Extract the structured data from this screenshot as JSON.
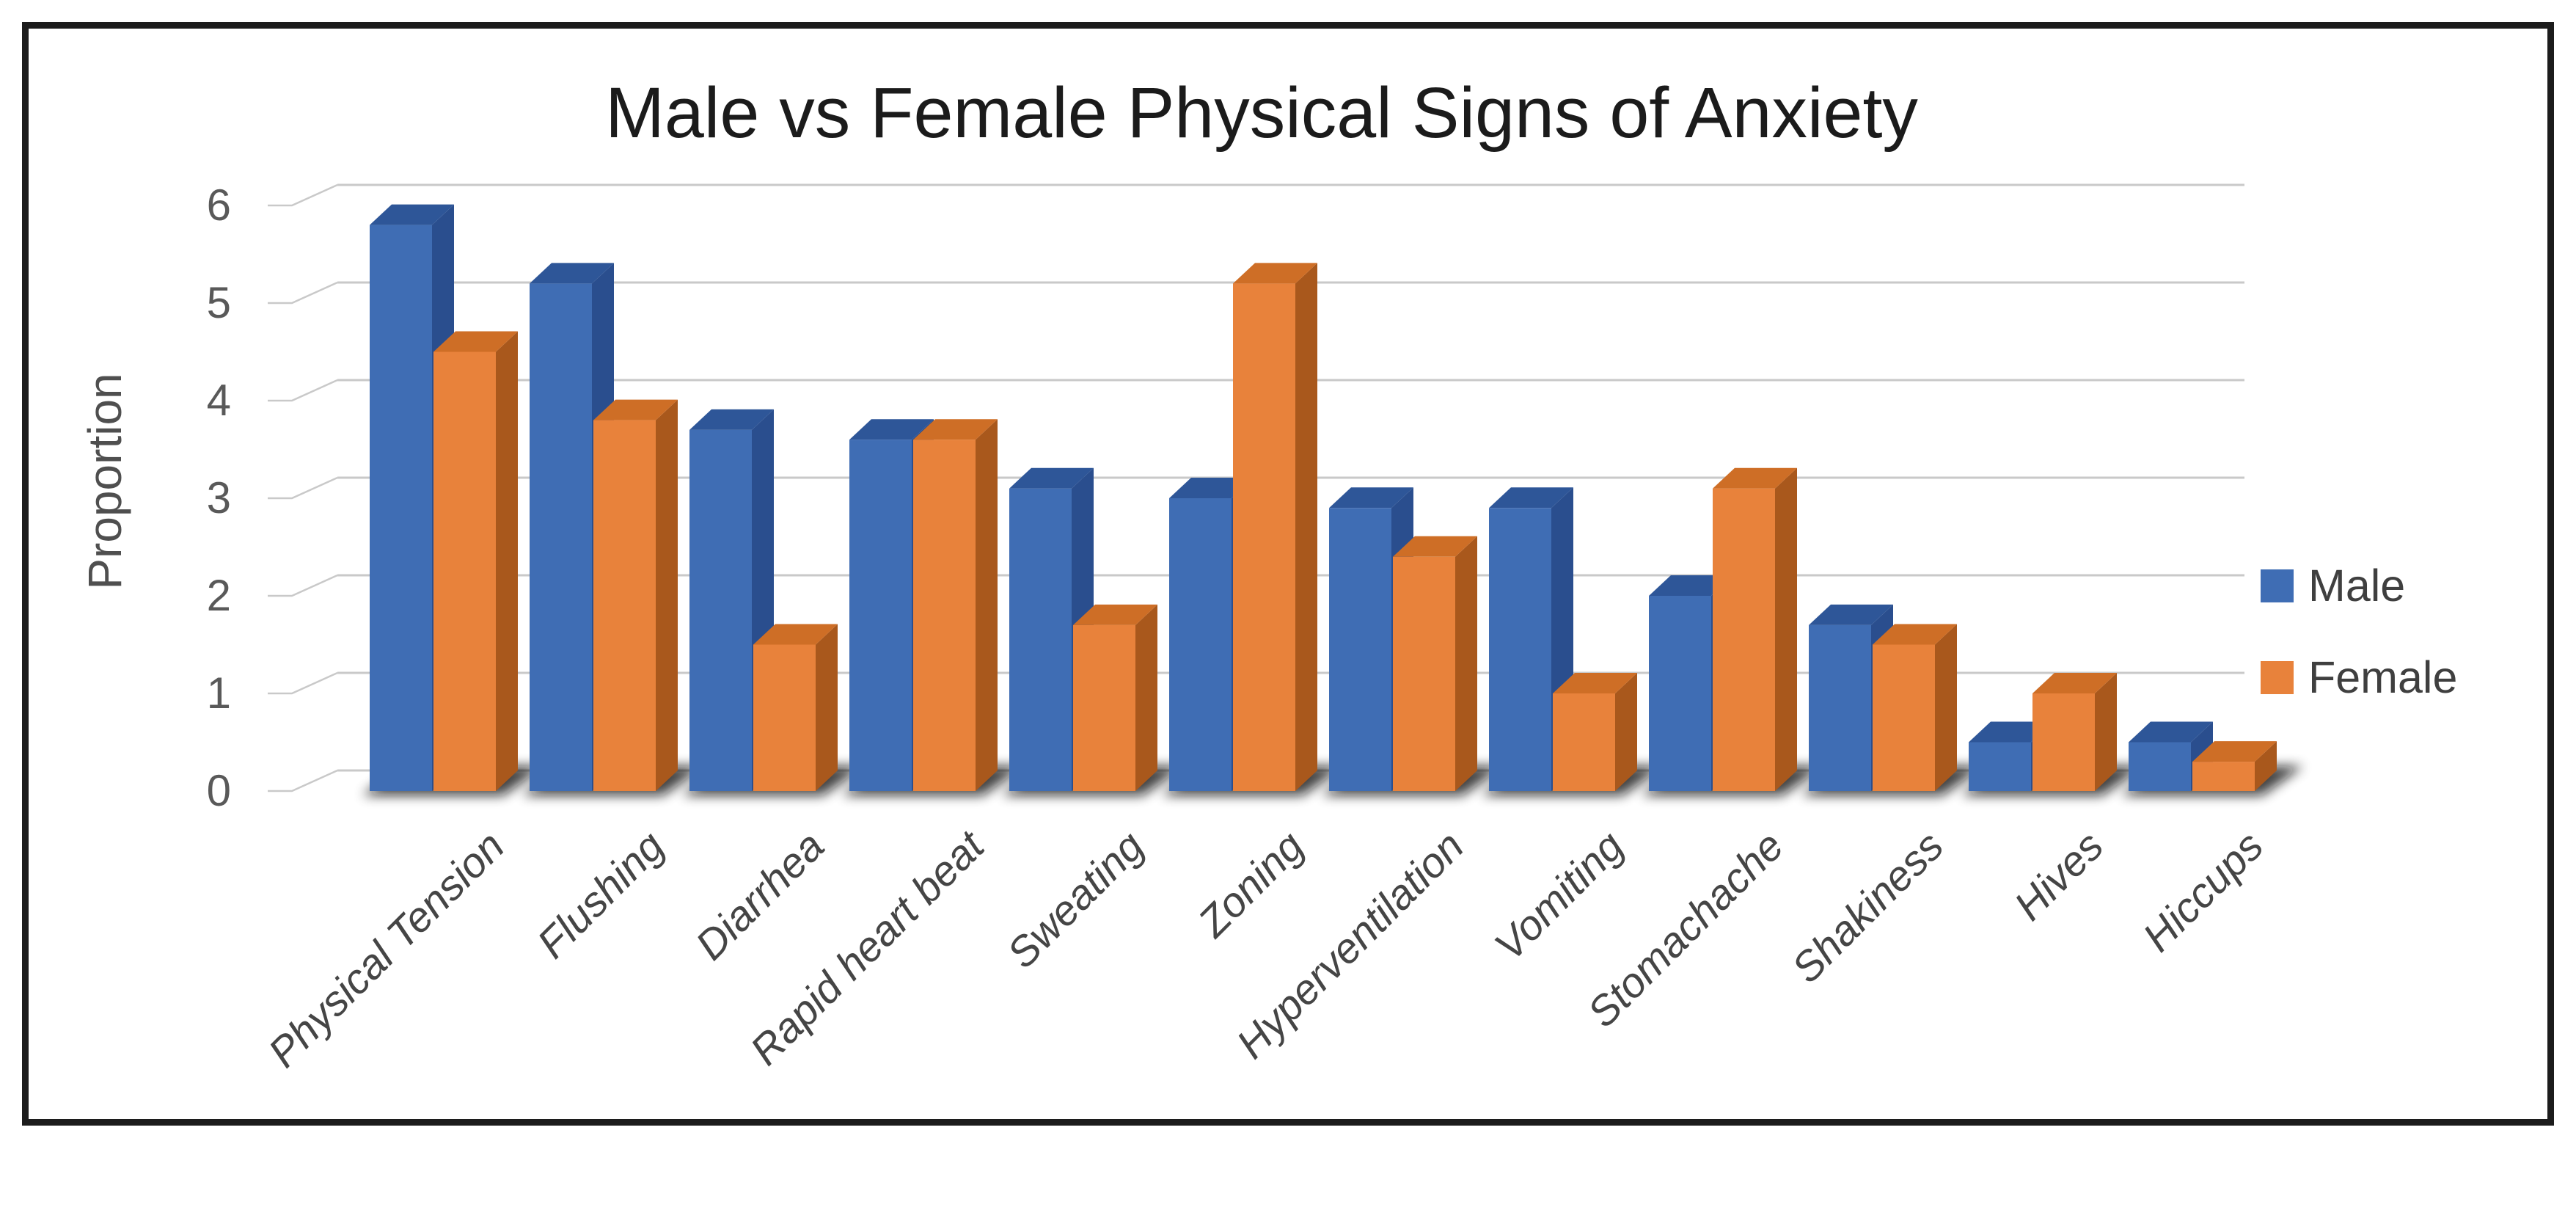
{
  "title": "Male vs Female Physical Signs of Anxiety",
  "chart_data": {
    "type": "bar",
    "projection": "3d-clustered",
    "title": "Male vs Female Physical Signs of Anxiety",
    "xlabel": "",
    "ylabel": "Proportion",
    "ylim": [
      0,
      6
    ],
    "yticks": [
      0,
      1,
      2,
      3,
      4,
      5,
      6
    ],
    "grid": true,
    "legend_position": "right",
    "categories": [
      "Physical Tension",
      "Flushing",
      "Diarrhea",
      "Rapid heart beat",
      "Sweating",
      "Zoning",
      "Hyperventilation",
      "Vomiting",
      "Stomachache",
      "Shakiness",
      "Hives",
      "Hiccups"
    ],
    "series": [
      {
        "name": "Male",
        "color": "#3F6DB4",
        "color_side": "#2A4E8E",
        "color_top": "#2E5698",
        "values": [
          5.8,
          5.2,
          3.7,
          3.6,
          3.1,
          3.0,
          2.9,
          2.9,
          2.0,
          1.7,
          0.5,
          0.5
        ]
      },
      {
        "name": "Female",
        "color": "#E8823B",
        "color_side": "#A9581C",
        "color_top": "#CE6E26",
        "values": [
          4.5,
          3.8,
          1.5,
          3.6,
          1.7,
          5.2,
          2.4,
          1.0,
          3.1,
          1.5,
          1.0,
          0.3
        ]
      }
    ],
    "colors": {
      "gridline": "#C9C9C9",
      "tick_text": "#595959",
      "category_text": "#454545",
      "legend_text": "#3F3F3F",
      "title_text": "#1B1B1B",
      "frame_border": "#1C1C1C",
      "background": "#FFFFFF",
      "floor_shadow": "#0A0A0A"
    }
  }
}
